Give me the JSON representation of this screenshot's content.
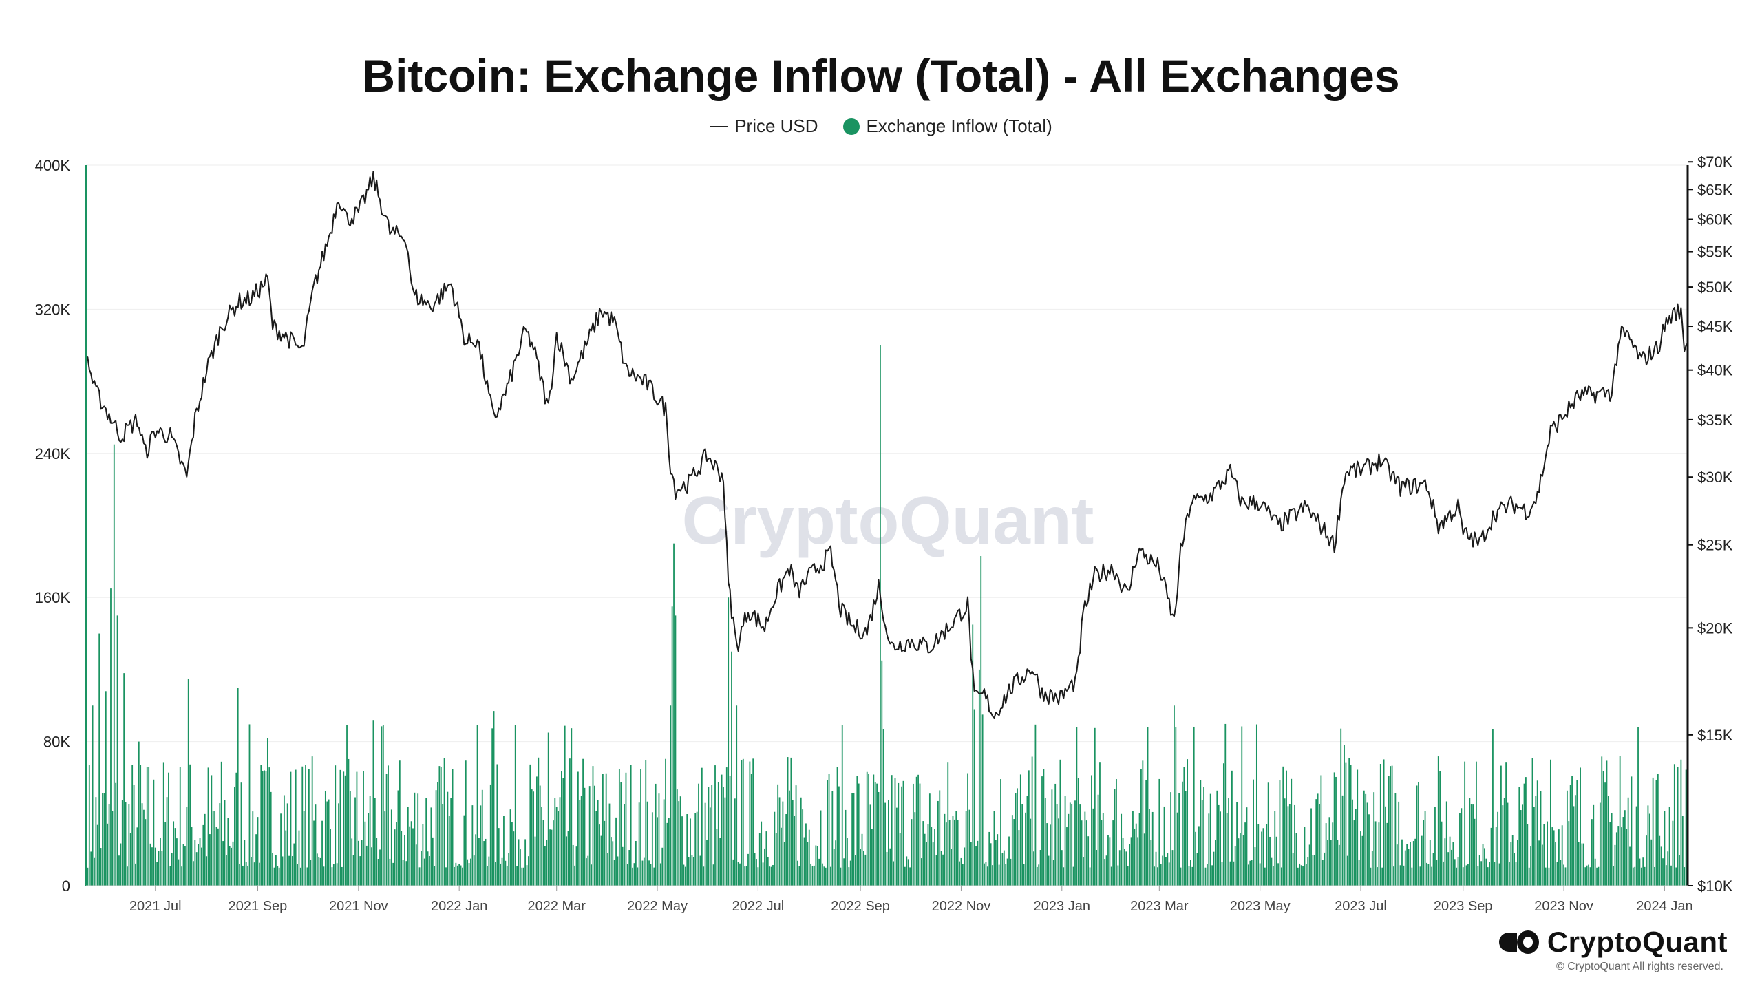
{
  "chart_data": {
    "type": "bar+line",
    "title": "Bitcoin: Exchange Inflow (Total) - All Exchanges",
    "legend": [
      {
        "name": "Price USD",
        "symbol": "line",
        "color": "#222222"
      },
      {
        "name": "Exchange Inflow (Total)",
        "symbol": "dot",
        "color": "#1a9361"
      }
    ],
    "legend_position": "top-center",
    "left_axis": {
      "min": 0,
      "max": 400000,
      "ticks": [
        "0",
        "80K",
        "160K",
        "240K",
        "320K",
        "400K"
      ],
      "tick_values": [
        0,
        80000,
        160000,
        240000,
        320000,
        400000
      ]
    },
    "right_axis": {
      "scale": "log",
      "min": 10000,
      "max": 72000,
      "ticks": [
        "$10K",
        "$15K",
        "$20K",
        "$25K",
        "$30K",
        "$35K",
        "$40K",
        "$45K",
        "$50K",
        "$55K",
        "$60K",
        "$65K",
        "$70K"
      ],
      "tick_values": [
        10000,
        15000,
        20000,
        25000,
        30000,
        35000,
        40000,
        45000,
        50000,
        55000,
        60000,
        65000,
        70000
      ]
    },
    "x_axis": {
      "start": "2021-05-20",
      "end": "2024-01-15",
      "ticks": [
        "2021 Jul",
        "2021 Sep",
        "2021 Nov",
        "2022 Jan",
        "2022 Mar",
        "2022 May",
        "2022 Jul",
        "2022 Sep",
        "2022 Nov",
        "2023 Jan",
        "2023 Mar",
        "2023 May",
        "2023 Jul",
        "2023 Sep",
        "2023 Nov",
        "2024 Jan"
      ],
      "tick_dates": [
        "2021-07-01",
        "2021-09-01",
        "2021-11-01",
        "2022-01-01",
        "2022-03-01",
        "2022-05-01",
        "2022-07-01",
        "2022-09-01",
        "2022-11-01",
        "2023-01-01",
        "2023-03-01",
        "2023-05-01",
        "2023-07-01",
        "2023-09-01",
        "2023-11-01",
        "2024-01-01"
      ]
    },
    "grid": "horizontal",
    "price_series": {
      "name": "Price USD",
      "points": [
        [
          "2021-05-20",
          42000
        ],
        [
          "2021-05-25",
          38000
        ],
        [
          "2021-06-01",
          36000
        ],
        [
          "2021-06-10",
          33500
        ],
        [
          "2021-06-20",
          35000
        ],
        [
          "2021-06-25",
          32000
        ],
        [
          "2021-07-01",
          34000
        ],
        [
          "2021-07-10",
          33500
        ],
        [
          "2021-07-20",
          30000
        ],
        [
          "2021-07-25",
          35000
        ],
        [
          "2021-08-01",
          40000
        ],
        [
          "2021-08-10",
          45000
        ],
        [
          "2021-08-20",
          48000
        ],
        [
          "2021-08-28",
          48500
        ],
        [
          "2021-09-07",
          51000
        ],
        [
          "2021-09-10",
          45000
        ],
        [
          "2021-09-20",
          43500
        ],
        [
          "2021-09-28",
          42000
        ],
        [
          "2021-10-05",
          50000
        ],
        [
          "2021-10-15",
          58000
        ],
        [
          "2021-10-20",
          64000
        ],
        [
          "2021-10-25",
          60000
        ],
        [
          "2021-11-01",
          61000
        ],
        [
          "2021-11-10",
          67000
        ],
        [
          "2021-11-20",
          58000
        ],
        [
          "2021-11-30",
          57000
        ],
        [
          "2021-12-04",
          49000
        ],
        [
          "2021-12-15",
          47500
        ],
        [
          "2021-12-27",
          50500
        ],
        [
          "2022-01-05",
          43000
        ],
        [
          "2022-01-12",
          43500
        ],
        [
          "2022-01-22",
          35000
        ],
        [
          "2022-01-30",
          38000
        ],
        [
          "2022-02-10",
          44500
        ],
        [
          "2022-02-15",
          42500
        ],
        [
          "2022-02-24",
          36000
        ],
        [
          "2022-03-01",
          44000
        ],
        [
          "2022-03-10",
          39000
        ],
        [
          "2022-03-28",
          47000
        ],
        [
          "2022-04-05",
          45500
        ],
        [
          "2022-04-12",
          40000
        ],
        [
          "2022-04-25",
          38500
        ],
        [
          "2022-05-06",
          36000
        ],
        [
          "2022-05-09",
          31000
        ],
        [
          "2022-05-12",
          29000
        ],
        [
          "2022-05-20",
          29500
        ],
        [
          "2022-05-31",
          31800
        ],
        [
          "2022-06-10",
          30000
        ],
        [
          "2022-06-13",
          22500
        ],
        [
          "2022-06-18",
          19000
        ],
        [
          "2022-06-25",
          21000
        ],
        [
          "2022-07-05",
          20000
        ],
        [
          "2022-07-10",
          21500
        ],
        [
          "2022-07-20",
          23500
        ],
        [
          "2022-07-25",
          22000
        ],
        [
          "2022-08-01",
          23000
        ],
        [
          "2022-08-14",
          24400
        ],
        [
          "2022-08-20",
          21000
        ],
        [
          "2022-08-28",
          20000
        ],
        [
          "2022-09-05",
          19800
        ],
        [
          "2022-09-12",
          22400
        ],
        [
          "2022-09-19",
          19000
        ],
        [
          "2022-10-01",
          19300
        ],
        [
          "2022-10-13",
          19000
        ],
        [
          "2022-10-25",
          20100
        ],
        [
          "2022-11-05",
          21300
        ],
        [
          "2022-11-09",
          16500
        ],
        [
          "2022-11-15",
          16700
        ],
        [
          "2022-11-21",
          15800
        ],
        [
          "2022-12-01",
          17000
        ],
        [
          "2022-12-14",
          18000
        ],
        [
          "2022-12-20",
          16800
        ],
        [
          "2022-12-31",
          16550
        ],
        [
          "2023-01-10",
          17400
        ],
        [
          "2023-01-14",
          20800
        ],
        [
          "2023-01-21",
          23000
        ],
        [
          "2023-02-01",
          23500
        ],
        [
          "2023-02-10",
          21800
        ],
        [
          "2023-02-16",
          24700
        ],
        [
          "2023-03-01",
          23500
        ],
        [
          "2023-03-10",
          20300
        ],
        [
          "2023-03-14",
          24500
        ],
        [
          "2023-03-20",
          28000
        ],
        [
          "2023-04-01",
          28500
        ],
        [
          "2023-04-13",
          30400
        ],
        [
          "2023-04-20",
          28000
        ],
        [
          "2023-05-01",
          28000
        ],
        [
          "2023-05-12",
          26300
        ],
        [
          "2023-05-29",
          27700
        ],
        [
          "2023-06-10",
          25800
        ],
        [
          "2023-06-15",
          25000
        ],
        [
          "2023-06-21",
          30000
        ],
        [
          "2023-06-24",
          30600
        ],
        [
          "2023-07-01",
          30500
        ],
        [
          "2023-07-13",
          31400
        ],
        [
          "2023-07-25",
          29200
        ],
        [
          "2023-08-10",
          29400
        ],
        [
          "2023-08-17",
          26300
        ],
        [
          "2023-08-29",
          27700
        ],
        [
          "2023-09-01",
          25800
        ],
        [
          "2023-09-11",
          25100
        ],
        [
          "2023-09-20",
          27200
        ],
        [
          "2023-10-01",
          27900
        ],
        [
          "2023-10-10",
          27400
        ],
        [
          "2023-10-16",
          28500
        ],
        [
          "2023-10-24",
          33900
        ],
        [
          "2023-11-01",
          35400
        ],
        [
          "2023-11-10",
          37300
        ],
        [
          "2023-11-20",
          37500
        ],
        [
          "2023-11-30",
          37700
        ],
        [
          "2023-12-05",
          44000
        ],
        [
          "2023-12-10",
          43700
        ],
        [
          "2023-12-18",
          41000
        ],
        [
          "2023-12-28",
          42500
        ],
        [
          "2024-01-02",
          45500
        ],
        [
          "2024-01-08",
          46800
        ],
        [
          "2024-01-11",
          46500
        ],
        [
          "2024-01-13",
          42800
        ],
        [
          "2024-01-15",
          43000
        ]
      ]
    },
    "inflow_series": {
      "name": "Exchange Inflow (Total)",
      "baseline_range": [
        10000,
        75000
      ],
      "spikes": [
        [
          "2021-05-20",
          400000
        ],
        [
          "2021-05-24",
          100000
        ],
        [
          "2021-05-28",
          140000
        ],
        [
          "2021-06-01",
          108000
        ],
        [
          "2021-06-04",
          165000
        ],
        [
          "2021-06-06",
          245000
        ],
        [
          "2021-06-08",
          150000
        ],
        [
          "2021-06-12",
          118000
        ],
        [
          "2021-06-21",
          80000
        ],
        [
          "2021-07-21",
          115000
        ],
        [
          "2021-08-20",
          110000
        ],
        [
          "2021-09-07",
          82000
        ],
        [
          "2021-11-10",
          92000
        ],
        [
          "2022-01-22",
          97000
        ],
        [
          "2022-02-24",
          85000
        ],
        [
          "2022-05-09",
          100000
        ],
        [
          "2022-05-10",
          155000
        ],
        [
          "2022-05-11",
          190000
        ],
        [
          "2022-05-12",
          150000
        ],
        [
          "2022-06-13",
          160000
        ],
        [
          "2022-06-15",
          130000
        ],
        [
          "2022-06-18",
          100000
        ],
        [
          "2022-09-13",
          300000
        ],
        [
          "2022-09-14",
          125000
        ],
        [
          "2022-11-08",
          145000
        ],
        [
          "2022-11-09",
          98000
        ],
        [
          "2022-11-12",
          120000
        ],
        [
          "2022-11-13",
          183000
        ],
        [
          "2022-11-14",
          95000
        ],
        [
          "2023-03-10",
          100000
        ],
        [
          "2023-03-11",
          88000
        ],
        [
          "2023-06-21",
          78000
        ],
        [
          "2023-10-24",
          70000
        ],
        [
          "2023-12-05",
          72000
        ],
        [
          "2024-01-11",
          70000
        ]
      ]
    },
    "watermark": "CryptoQuant"
  },
  "brand": {
    "name": "CryptoQuant",
    "copyright": "© CryptoQuant All rights reserved."
  }
}
